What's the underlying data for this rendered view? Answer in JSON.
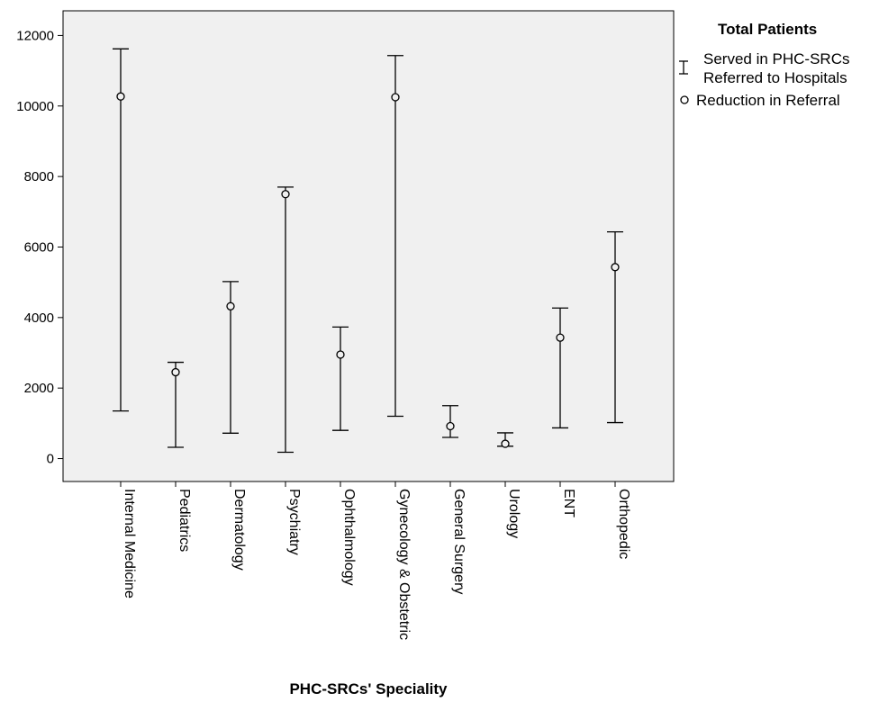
{
  "chart_data": {
    "type": "error-bar",
    "xlabel": "PHC-SRCs' Speciality",
    "ylabel": "",
    "ylim": [
      -650,
      12700
    ],
    "yticks": [
      0,
      2000,
      4000,
      6000,
      8000,
      10000,
      12000
    ],
    "categories": [
      "Internal Medicine",
      "Pediatrics",
      "Dermatology",
      "Psychiatry",
      "Ophthalmology",
      "Gynecology & Obstetric",
      "General Surgery",
      "Urology",
      "ENT",
      "Orthopedic"
    ],
    "series": [
      {
        "name": "Served in PHC-SRCs Referred to Hospitals",
        "kind": "range",
        "low": [
          1350,
          320,
          720,
          180,
          800,
          1200,
          600,
          350,
          870,
          1020
        ],
        "high": [
          11620,
          2730,
          5020,
          7700,
          3730,
          11430,
          1500,
          730,
          4270,
          6430
        ]
      },
      {
        "name": "Reduction in Referral",
        "kind": "point",
        "values": [
          10270,
          2450,
          4320,
          7500,
          2950,
          10250,
          920,
          420,
          3430,
          5430
        ]
      }
    ],
    "legend": {
      "title": "Total Patients",
      "placement": "top-right",
      "entries": [
        "Served in PHC-SRCs",
        "Referred to Hospitals",
        "Reduction in Referral"
      ]
    },
    "grid": false,
    "plot_background": "#f0f0f0"
  }
}
